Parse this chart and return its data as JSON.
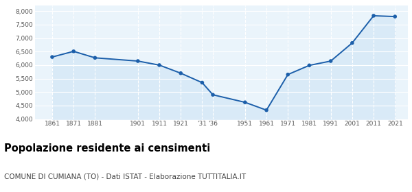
{
  "years": [
    1861,
    1871,
    1881,
    1901,
    1911,
    1921,
    1931,
    1936,
    1951,
    1961,
    1971,
    1981,
    1991,
    2001,
    2011,
    2021
  ],
  "population": [
    6300,
    6510,
    6270,
    6150,
    6000,
    5700,
    5350,
    4900,
    4620,
    4330,
    5650,
    5990,
    6150,
    6820,
    7830,
    7800
  ],
  "x_ticks": [
    1861,
    1871,
    1881,
    1901,
    1911,
    1921,
    1931,
    1936,
    1951,
    1961,
    1971,
    1981,
    1991,
    2001,
    2011,
    2021
  ],
  "x_tick_labels": [
    "1861",
    "1871",
    "1881",
    "1901",
    "1911",
    "1921",
    "‱36",
    "1951",
    "1961",
    "1971",
    "1981",
    "1991",
    "2001",
    "2011",
    "2021"
  ],
  "x_tick_labels2": [
    "1861",
    "1871",
    "1881",
    "1901",
    "1911",
    "1921",
    "'31'36",
    "1951",
    "1961",
    "1971",
    "1981",
    "1991",
    "2001",
    "2011",
    "2021"
  ],
  "ylim": [
    4000,
    8200
  ],
  "yticks": [
    4000,
    4500,
    5000,
    5500,
    6000,
    6500,
    7000,
    7500,
    8000
  ],
  "ytick_labels": [
    "4,000",
    "4,500",
    "5,000",
    "5,500",
    "6,000",
    "6,500",
    "7,000",
    "7,500",
    "8,000"
  ],
  "line_color": "#1c5faa",
  "fill_color": "#d9eaf7",
  "marker_color": "#1c5faa",
  "bg_color": "#eaf4fb",
  "grid_color": "#ffffff",
  "title": "Popolazione residente ai censimenti",
  "subtitle": "COMUNE DI CUMIANA (TO) - Dati ISTAT - Elaborazione TUTTITALIA.IT",
  "title_fontsize": 10.5,
  "subtitle_fontsize": 7.5
}
